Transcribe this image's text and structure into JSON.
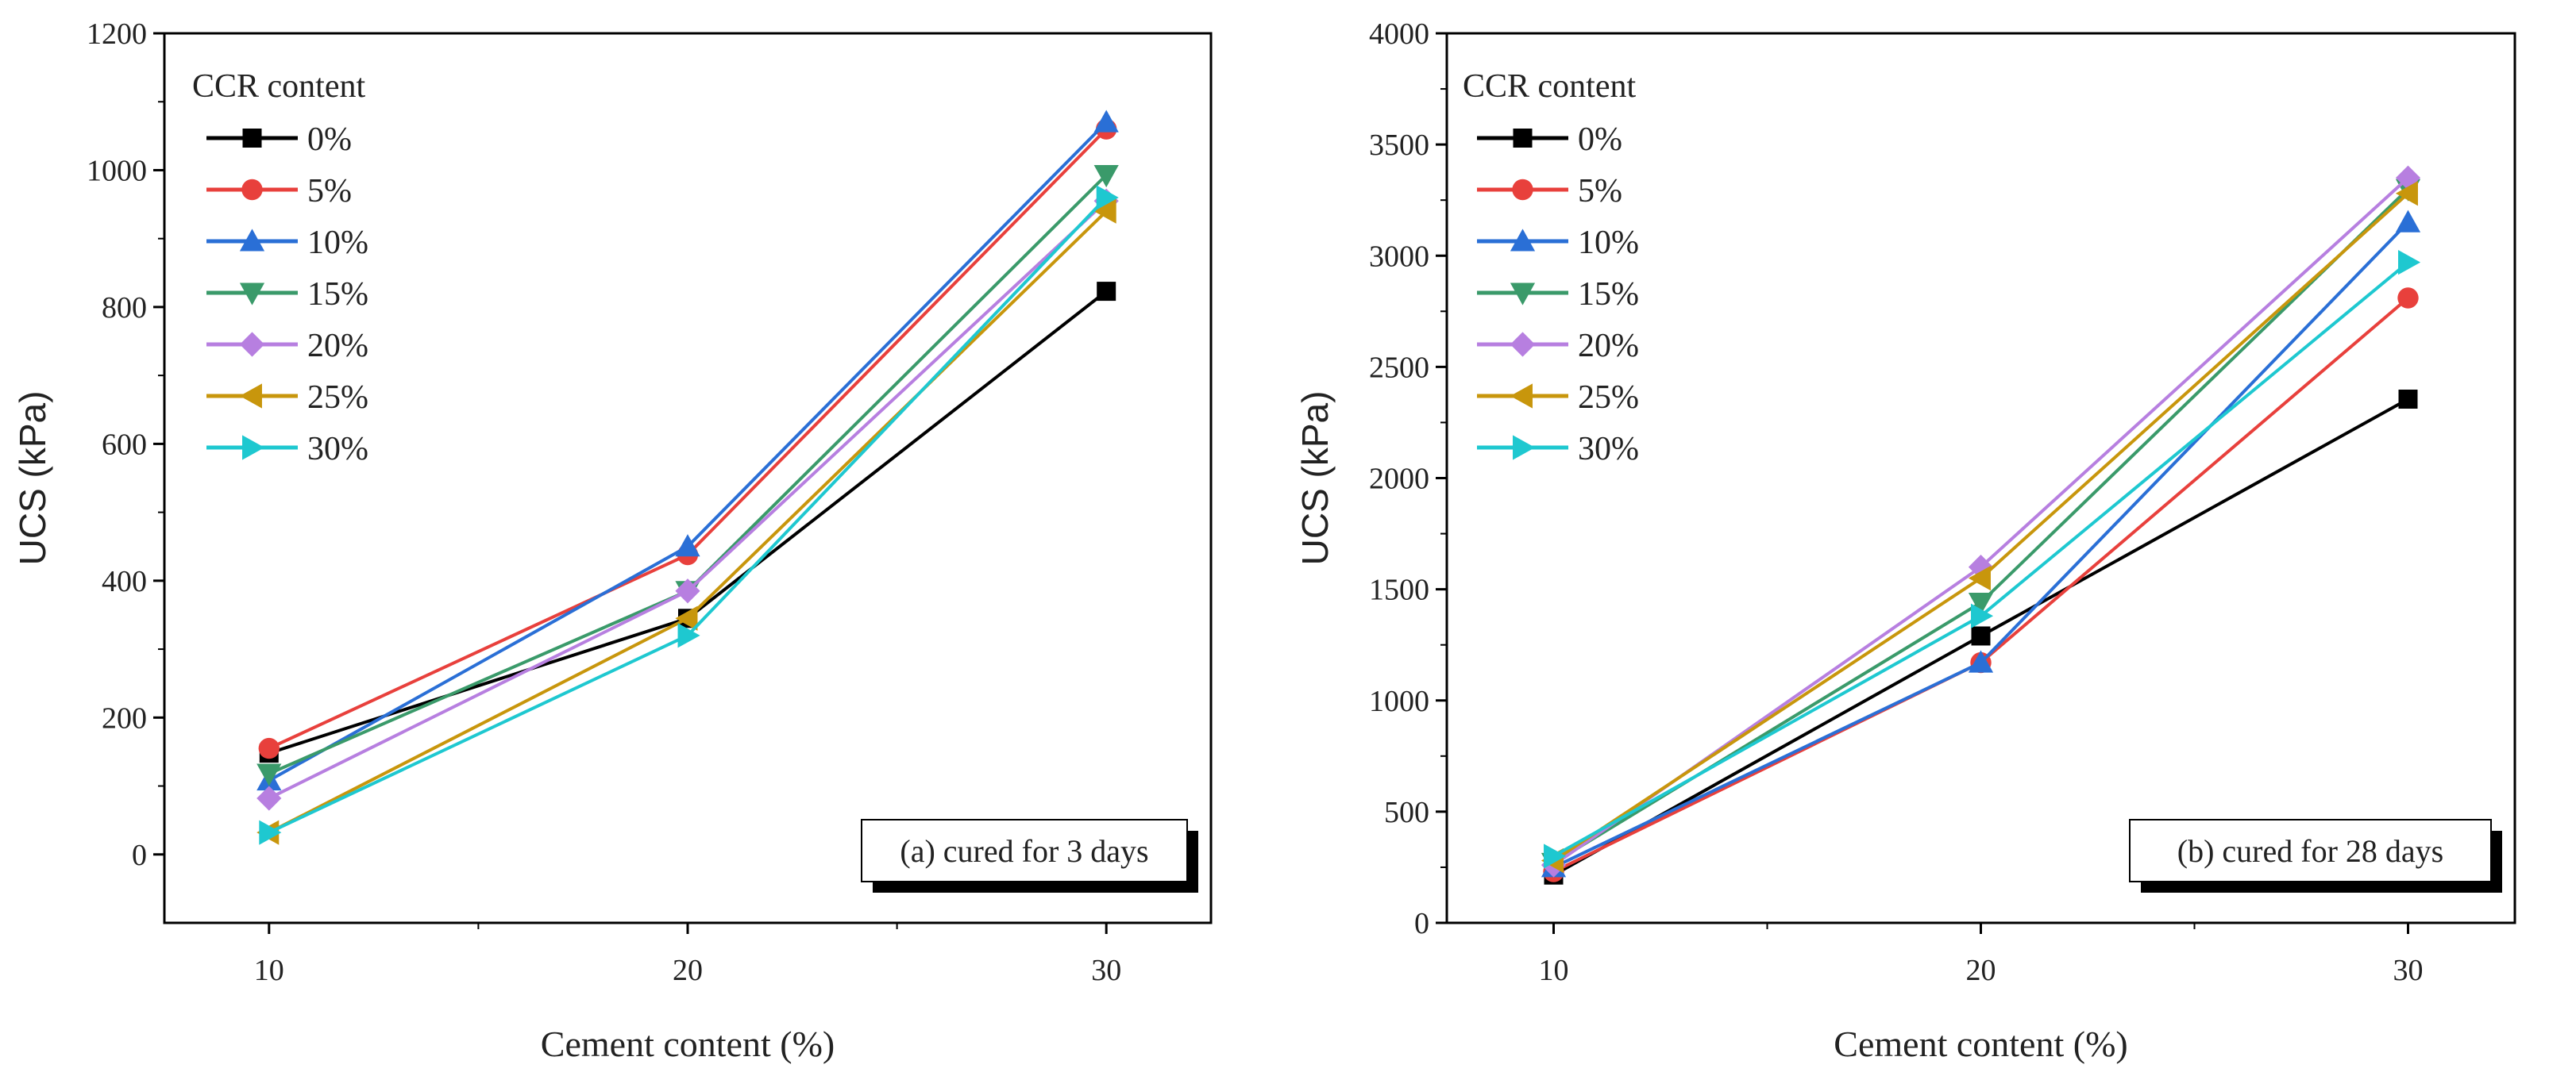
{
  "chart_data": [
    {
      "type": "line",
      "title": "",
      "xlabel": "Cement content (%)",
      "ylabel": "UCS (kPa)",
      "x": [
        10,
        20,
        30
      ],
      "xlim": [
        7.5,
        32.5
      ],
      "ylim": [
        -100,
        1200
      ],
      "yticks": [
        0,
        200,
        400,
        600,
        800,
        1000,
        1200
      ],
      "xticks": [
        10,
        20,
        30
      ],
      "grid": false,
      "legend_title": "CCR content",
      "legend_placement": "top-left",
      "annotation": "(a) cured for 3 days",
      "series": [
        {
          "name": "0%",
          "marker": "square",
          "color": "#000000",
          "values": [
            148,
            345,
            823
          ]
        },
        {
          "name": "5%",
          "marker": "circle",
          "color": "#e8403c",
          "values": [
            155,
            438,
            1060
          ]
        },
        {
          "name": "10%",
          "marker": "triangle-up",
          "color": "#2a6fd6",
          "values": [
            108,
            450,
            1070
          ]
        },
        {
          "name": "15%",
          "marker": "triangle-down",
          "color": "#3a9a6a",
          "values": [
            118,
            385,
            993
          ]
        },
        {
          "name": "20%",
          "marker": "diamond",
          "color": "#b77fe0",
          "values": [
            82,
            385,
            955
          ]
        },
        {
          "name": "25%",
          "marker": "triangle-left",
          "color": "#c8960c",
          "values": [
            32,
            345,
            940
          ]
        },
        {
          "name": "30%",
          "marker": "triangle-right",
          "color": "#1ec8d0",
          "values": [
            32,
            320,
            960
          ]
        }
      ]
    },
    {
      "type": "line",
      "title": "",
      "xlabel": "Cement content (%)",
      "ylabel": "UCS (kPa)",
      "x": [
        10,
        20,
        30
      ],
      "xlim": [
        7.5,
        32.5
      ],
      "ylim": [
        0,
        4000
      ],
      "yticks": [
        0,
        500,
        1000,
        1500,
        2000,
        2500,
        3000,
        3500,
        4000
      ],
      "xticks": [
        10,
        20,
        30
      ],
      "grid": false,
      "legend_title": "CCR content",
      "legend_placement": "top-left",
      "annotation": "(b) cured for 28 days",
      "series": [
        {
          "name": "0%",
          "marker": "square",
          "color": "#000000",
          "values": [
            215,
            1290,
            2355
          ]
        },
        {
          "name": "5%",
          "marker": "circle",
          "color": "#e8403c",
          "values": [
            230,
            1170,
            2810
          ]
        },
        {
          "name": "10%",
          "marker": "triangle-up",
          "color": "#2a6fd6",
          "values": [
            250,
            1170,
            3150
          ]
        },
        {
          "name": "15%",
          "marker": "triangle-down",
          "color": "#3a9a6a",
          "values": [
            270,
            1440,
            3300
          ]
        },
        {
          "name": "20%",
          "marker": "diamond",
          "color": "#b77fe0",
          "values": [
            260,
            1600,
            3350
          ]
        },
        {
          "name": "25%",
          "marker": "triangle-left",
          "color": "#c8960c",
          "values": [
            280,
            1550,
            3280
          ]
        },
        {
          "name": "30%",
          "marker": "triangle-right",
          "color": "#1ec8d0",
          "values": [
            300,
            1380,
            2970
          ]
        }
      ]
    }
  ]
}
